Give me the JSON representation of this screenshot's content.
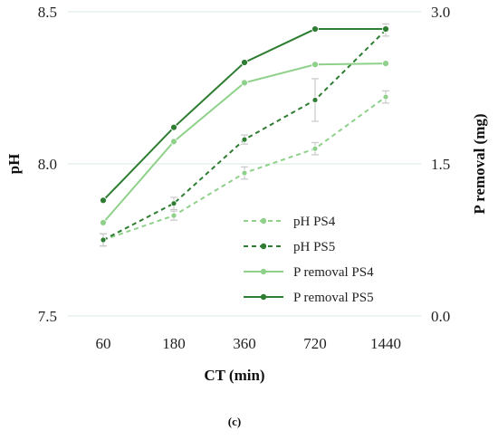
{
  "chart_data": {
    "type": "line",
    "categories": [
      "60",
      "180",
      "360",
      "720",
      "1440"
    ],
    "xlabel": "CT (min)",
    "ylabel": "pH",
    "y2label": "P removal (mg)",
    "ylim": [
      7.5,
      8.5
    ],
    "yticks": [
      "7.5",
      "8.0",
      "8.5"
    ],
    "y2lim": [
      0.0,
      3.0
    ],
    "y2ticks": [
      "0.0",
      "1.5",
      "3.0"
    ],
    "grid": "horizontal",
    "legend_position": "center-right",
    "caption": "(c)",
    "series": [
      {
        "name": "pH PS4",
        "axis": "left",
        "style": "dashed",
        "color": "#8fd18a",
        "values": [
          7.75,
          7.83,
          7.97,
          8.05,
          8.22
        ],
        "errors": [
          0.02,
          0.015,
          0.02,
          0.02,
          0.02
        ]
      },
      {
        "name": "pH PS5",
        "axis": "left",
        "style": "dashed",
        "color": "#2e7d32",
        "values": [
          7.75,
          7.87,
          8.08,
          8.21,
          8.44
        ],
        "errors": [
          0.02,
          0.02,
          0.015,
          0.07,
          0.02
        ]
      },
      {
        "name": "P removal PS4",
        "axis": "right",
        "style": "solid",
        "color": "#8fd18a",
        "values": [
          0.92,
          1.72,
          2.3,
          2.48,
          2.49
        ],
        "errors": [
          0.0,
          0.0,
          0.0,
          0.0,
          0.0
        ]
      },
      {
        "name": "P removal PS5",
        "axis": "right",
        "style": "solid",
        "color": "#2e7d32",
        "values": [
          1.14,
          1.86,
          2.5,
          2.83,
          2.83
        ],
        "errors": [
          0.0,
          0.0,
          0.0,
          0.0,
          0.0
        ]
      }
    ]
  }
}
